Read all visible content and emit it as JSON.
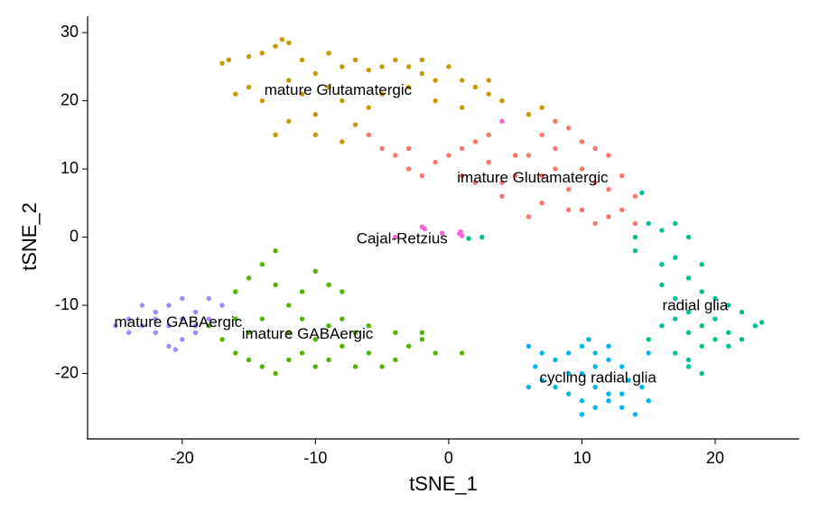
{
  "chart_data": {
    "type": "scatter",
    "xlabel": "tSNE_1",
    "ylabel": "tSNE_2",
    "xlim": [
      -27.1,
      26.3
    ],
    "ylim": [
      -29.6,
      32.4
    ],
    "xticks": [
      -20,
      -10,
      0,
      10,
      20
    ],
    "yticks": [
      -20,
      -10,
      0,
      10,
      20,
      30
    ],
    "grid": false,
    "series": [
      {
        "name": "mature Glutamatergic",
        "color": "#C49A00",
        "label_x": -8.3,
        "label_y": 21.5,
        "x": [
          -17,
          -16.5,
          -15,
          -14,
          -13,
          -12.5,
          -12,
          -11,
          -10,
          -9,
          -8,
          -7,
          -6,
          -5,
          -4,
          -3,
          -2,
          -1,
          0,
          1,
          2,
          3,
          4,
          1,
          -1,
          -3,
          -5,
          -8,
          -10,
          -12,
          -13,
          -10,
          -8,
          -7,
          -15,
          -14,
          -16,
          -11,
          7,
          8,
          6,
          -6,
          -2,
          3,
          -12,
          -9
        ],
        "y": [
          25.5,
          26,
          26.5,
          27,
          28,
          29,
          28.5,
          26,
          24,
          22,
          25,
          26,
          24.5,
          25,
          26,
          25,
          24,
          23,
          25,
          23,
          22,
          21,
          20,
          19,
          20,
          22,
          21,
          20,
          18,
          17,
          15,
          15,
          14,
          16.5,
          22,
          20,
          21,
          21,
          19,
          17,
          18,
          19,
          26,
          23,
          23,
          27
        ]
      },
      {
        "name": "imature Glutamatergic",
        "color": "#F8766D",
        "label_x": 6.3,
        "label_y": 8.6,
        "x": [
          -6,
          -5,
          -4,
          -3,
          -2,
          -1,
          0,
          1,
          2,
          3,
          2,
          4,
          5,
          6,
          7,
          8,
          9,
          10,
          11,
          12,
          13,
          14,
          13,
          12,
          11,
          10,
          9,
          8,
          7,
          6,
          5,
          3,
          10,
          12,
          14,
          8,
          4,
          11,
          9,
          7,
          -3,
          1
        ],
        "y": [
          15,
          13,
          12,
          10,
          9,
          11,
          12,
          13,
          14,
          11,
          8,
          6,
          9,
          12,
          15,
          17,
          16,
          14,
          13,
          12,
          9,
          6,
          4,
          3,
          2,
          4,
          7,
          10,
          5,
          3,
          12,
          15,
          10,
          7,
          2,
          13,
          8,
          8,
          4,
          9,
          13,
          9
        ]
      },
      {
        "name": "Cajal-Retzius",
        "color": "#FB61D7",
        "label_x": -3.5,
        "label_y": -0.3,
        "x": [
          -2,
          -1.8,
          0.8,
          1,
          4,
          -0.5,
          -4,
          0.9
        ],
        "y": [
          1.5,
          1.2,
          0.5,
          0.2,
          17,
          0.6,
          0,
          0.8
        ]
      },
      {
        "name": "radial glia",
        "color": "#00C094",
        "label_x": 18.5,
        "label_y": -10.1,
        "x": [
          14,
          15,
          16,
          17,
          18,
          17,
          16,
          18,
          19,
          17,
          18,
          19,
          20,
          21,
          22,
          23,
          22,
          21,
          19,
          18,
          17,
          19,
          18,
          20,
          15,
          16,
          17,
          18,
          20,
          19,
          14,
          16,
          21,
          23.5,
          2.5,
          1.5,
          14.5
        ],
        "y": [
          0,
          2,
          1,
          2,
          0,
          -3,
          -4,
          -6,
          -8,
          -9,
          -11,
          -13,
          -12,
          -10,
          -11,
          -13,
          -15,
          -14,
          -16,
          -18,
          -17,
          -20,
          -19,
          -15,
          -15,
          -13,
          -12,
          -14,
          -9,
          -4,
          -2,
          -7,
          -16,
          -12.5,
          0,
          -0.2,
          6.5
        ]
      },
      {
        "name": "cycling radial glia",
        "color": "#00B6EB",
        "label_x": 11.2,
        "label_y": -20.7,
        "x": [
          6,
          7,
          8,
          9,
          10,
          10.5,
          11,
          12,
          13,
          13.5,
          12,
          11,
          10,
          9,
          8,
          7,
          6.5,
          10,
          11,
          12,
          13,
          14,
          15,
          14.5,
          9,
          10,
          11,
          15,
          12,
          6,
          13
        ],
        "y": [
          -16,
          -17,
          -18,
          -17,
          -16,
          -15,
          -17,
          -18,
          -19,
          -21,
          -23,
          -22,
          -24,
          -23,
          -22,
          -21,
          -19,
          -26,
          -25,
          -24,
          -25,
          -26,
          -24,
          -22,
          -20,
          -20,
          -19,
          -17,
          -16,
          -22,
          -23
        ]
      },
      {
        "name": "imature GABAergic",
        "color": "#53B400",
        "label_x": -10.6,
        "label_y": -14.3,
        "x": [
          -13,
          -14,
          -15,
          -16,
          -17,
          -18,
          -17,
          -16,
          -15,
          -14,
          -13,
          -12,
          -11,
          -10,
          -9,
          -8,
          -7,
          -6,
          -5,
          -4,
          -3,
          -2,
          -1,
          1,
          -2,
          -4,
          -6,
          -8,
          -10,
          -12,
          -12,
          -11,
          -13,
          -10,
          -9,
          -14,
          -15,
          -11,
          -7,
          -9,
          -8,
          -16
        ],
        "y": [
          -2,
          -4,
          -6,
          -8,
          -10,
          -13,
          -15,
          -17,
          -18,
          -19,
          -20,
          -18,
          -17,
          -15,
          -13,
          -12,
          -14,
          -17,
          -19,
          -18,
          -16,
          -15,
          -17,
          -17,
          -14,
          -14,
          -13,
          -16,
          -19,
          -14,
          -10,
          -8,
          -7,
          -5,
          -7,
          -12,
          -14,
          -12,
          -19,
          -18,
          -8,
          -12
        ]
      },
      {
        "name": "mature GABAergic",
        "color": "#A58AFF",
        "label_x": -20.3,
        "label_y": -12.6,
        "x": [
          -25,
          -24,
          -23,
          -22,
          -21,
          -20,
          -19,
          -18,
          -17,
          -18,
          -19,
          -20,
          -21,
          -22,
          -23,
          -24,
          -21,
          -20,
          -22,
          -19,
          -20.5
        ],
        "y": [
          -13,
          -12,
          -10,
          -11,
          -10,
          -9,
          -11,
          -12,
          -10,
          -9,
          -13,
          -15,
          -16,
          -14,
          -13,
          -14,
          -13,
          -12,
          -12,
          -14,
          -16.5
        ]
      }
    ]
  }
}
